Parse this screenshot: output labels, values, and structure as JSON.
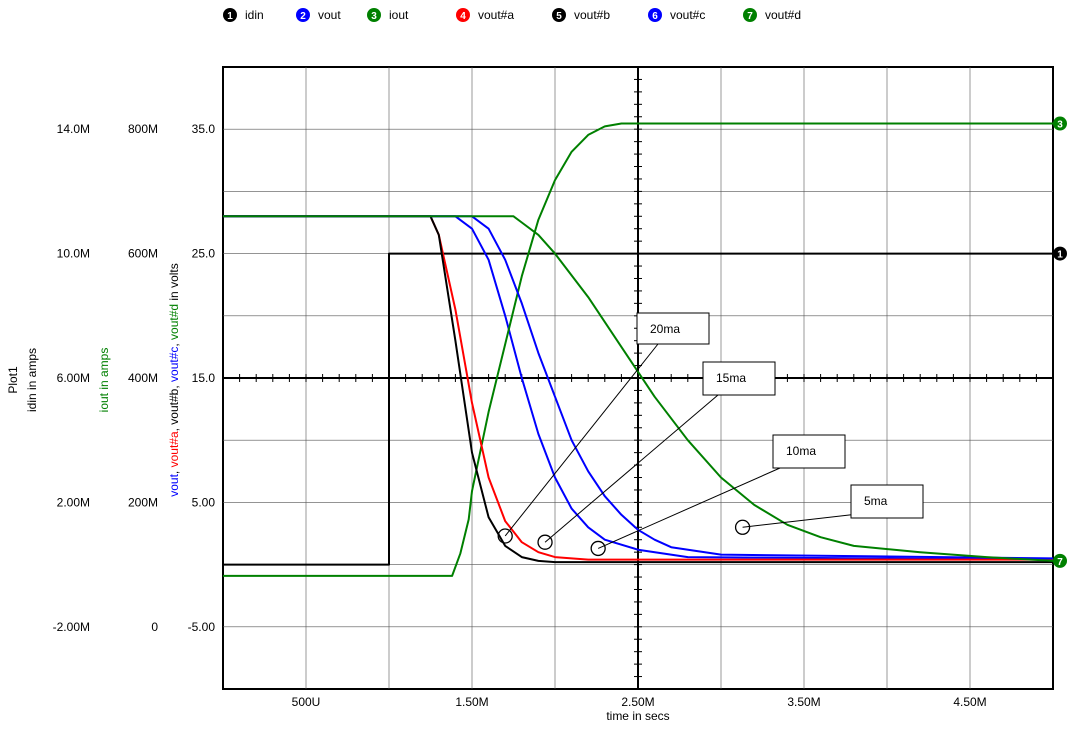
{
  "legend": [
    {
      "num": "1",
      "label": "idin",
      "color": "#000000"
    },
    {
      "num": "2",
      "label": "vout",
      "color": "#0000ff"
    },
    {
      "num": "3",
      "label": "iout",
      "color": "#008000"
    },
    {
      "num": "4",
      "label": "vout#a",
      "color": "#ff0000"
    },
    {
      "num": "5",
      "label": "vout#b",
      "color": "#000000"
    },
    {
      "num": "6",
      "label": "vout#c",
      "color": "#0000ff"
    },
    {
      "num": "7",
      "label": "vout#d",
      "color": "#008000"
    }
  ],
  "axes": {
    "plot_title": "Plot1",
    "idin_label": "idin in amps",
    "iout_label": "iout in amps",
    "vout_label_parts": [
      {
        "text": "vout",
        "color": "#0000ff"
      },
      {
        "text": ", ",
        "color": "#000000"
      },
      {
        "text": "vout#a",
        "color": "#ff0000"
      },
      {
        "text": ", vout#b, ",
        "color": "#000000"
      },
      {
        "text": "vout#c",
        "color": "#0000ff"
      },
      {
        "text": ", ",
        "color": "#000000"
      },
      {
        "text": "vout#d",
        "color": "#008000"
      },
      {
        "text": " in volts",
        "color": "#000000"
      }
    ],
    "xlabel": "time in secs",
    "x_ticks": [
      {
        "value": 0.0005,
        "label": "500U"
      },
      {
        "value": 0.0015,
        "label": "1.50M"
      },
      {
        "value": 0.0025,
        "label": "2.50M"
      },
      {
        "value": 0.0035,
        "label": "3.50M"
      },
      {
        "value": 0.0045,
        "label": "4.50M"
      }
    ],
    "idin_ticks": [
      "14.0M",
      "10.0M",
      "6.00M",
      "2.00M",
      "-2.00M"
    ],
    "iout_ticks": [
      "800M",
      "600M",
      "400M",
      "200M",
      "0"
    ],
    "v_ticks": [
      {
        "value": 35,
        "label": "35.0"
      },
      {
        "value": 25,
        "label": "25.0"
      },
      {
        "value": 15,
        "label": "15.0"
      },
      {
        "value": 5,
        "label": "5.00"
      },
      {
        "value": -5,
        "label": "-5.00"
      }
    ]
  },
  "chart_data": {
    "type": "line",
    "xlabel": "time in secs",
    "ylabel": "vout, vout#a, vout#b, vout#c, vout#d in volts",
    "xlim": [
      0,
      0.005
    ],
    "ylim_volts": [
      -10,
      40
    ],
    "ylim_iout_amps": [
      -0.2,
      0.9
    ],
    "ylim_idin_amps": [
      -0.004,
      0.016
    ],
    "grid": true,
    "legend_position": "top",
    "series": [
      {
        "name": "idin",
        "color": "#000000",
        "axis": "idin",
        "x": [
          0,
          0.001,
          0.001,
          0.005
        ],
        "y": [
          0.0,
          0.0,
          0.01,
          0.01
        ]
      },
      {
        "name": "vout",
        "color": "#0000ff",
        "axis": "volts",
        "x": [
          0,
          0.0014,
          0.0015,
          0.0016,
          0.0017,
          0.0018,
          0.0019,
          0.002,
          0.0021,
          0.0022,
          0.0023,
          0.0025,
          0.0028,
          0.005
        ],
        "y": [
          28,
          28,
          27,
          24.5,
          20,
          15,
          10.5,
          7,
          4.5,
          3,
          2,
          1.2,
          0.6,
          0.4
        ]
      },
      {
        "name": "iout",
        "color": "#008000",
        "axis": "iout",
        "x": [
          0,
          0.00138,
          0.00143,
          0.00148,
          0.0015,
          0.0016,
          0.0017,
          0.0018,
          0.0019,
          0.002,
          0.0021,
          0.0022,
          0.0023,
          0.0024,
          0.0025,
          0.003,
          0.005
        ],
        "y": [
          0.0,
          0.0,
          0.04,
          0.1,
          0.15,
          0.29,
          0.41,
          0.53,
          0.63,
          0.7,
          0.75,
          0.78,
          0.795,
          0.8,
          0.8,
          0.8,
          0.8
        ]
      },
      {
        "name": "vout#a",
        "color": "#ff0000",
        "axis": "volts",
        "x": [
          0,
          0.00125,
          0.0013,
          0.0014,
          0.0015,
          0.0016,
          0.0017,
          0.0018,
          0.0019,
          0.002,
          0.0022,
          0.005
        ],
        "y": [
          28,
          28,
          26.5,
          20.5,
          13,
          7,
          3.5,
          1.8,
          1.0,
          0.6,
          0.4,
          0.4
        ]
      },
      {
        "name": "vout#b",
        "color": "#000000",
        "axis": "volts",
        "x": [
          0,
          0.00125,
          0.0013,
          0.0014,
          0.0015,
          0.0016,
          0.0017,
          0.0018,
          0.0019,
          0.002,
          0.005
        ],
        "y": [
          28,
          28,
          26.5,
          18,
          9,
          3.8,
          1.5,
          0.6,
          0.3,
          0.2,
          0.2
        ]
      },
      {
        "name": "vout#c",
        "color": "#0000ff",
        "axis": "volts",
        "x": [
          0,
          0.0015,
          0.0016,
          0.0017,
          0.0018,
          0.0019,
          0.002,
          0.0021,
          0.0022,
          0.0023,
          0.0024,
          0.0025,
          0.0026,
          0.0027,
          0.003,
          0.005
        ],
        "y": [
          28,
          28,
          27,
          24.5,
          21,
          17,
          13.5,
          10,
          7.5,
          5.5,
          4,
          2.8,
          2,
          1.4,
          0.8,
          0.5
        ]
      },
      {
        "name": "vout#d",
        "color": "#008000",
        "axis": "volts",
        "x": [
          0,
          0.00175,
          0.0018,
          0.0019,
          0.002,
          0.0022,
          0.0024,
          0.0026,
          0.0028,
          0.003,
          0.0032,
          0.0034,
          0.0036,
          0.0038,
          0.0042,
          0.0046,
          0.005
        ],
        "y": [
          28,
          28,
          27.5,
          26.5,
          25,
          21.5,
          17.5,
          13.5,
          10,
          7,
          4.8,
          3.2,
          2.2,
          1.5,
          1,
          0.6,
          0.3
        ]
      }
    ],
    "annotations": [
      {
        "text": "20ma",
        "target_x": 0.0017,
        "target_y": 2.3
      },
      {
        "text": "15ma",
        "target_x": 0.00194,
        "target_y": 1.8
      },
      {
        "text": "10ma",
        "target_x": 0.00226,
        "target_y": 1.3
      },
      {
        "text": "5ma",
        "target_x": 0.00313,
        "target_y": 3.0
      }
    ],
    "end_markers": [
      {
        "num": "3",
        "color": "#008000",
        "series": "iout"
      },
      {
        "num": "1",
        "color": "#000000",
        "series": "idin"
      },
      {
        "num": "7",
        "color": "#008000",
        "series": "vout#d"
      }
    ]
  }
}
